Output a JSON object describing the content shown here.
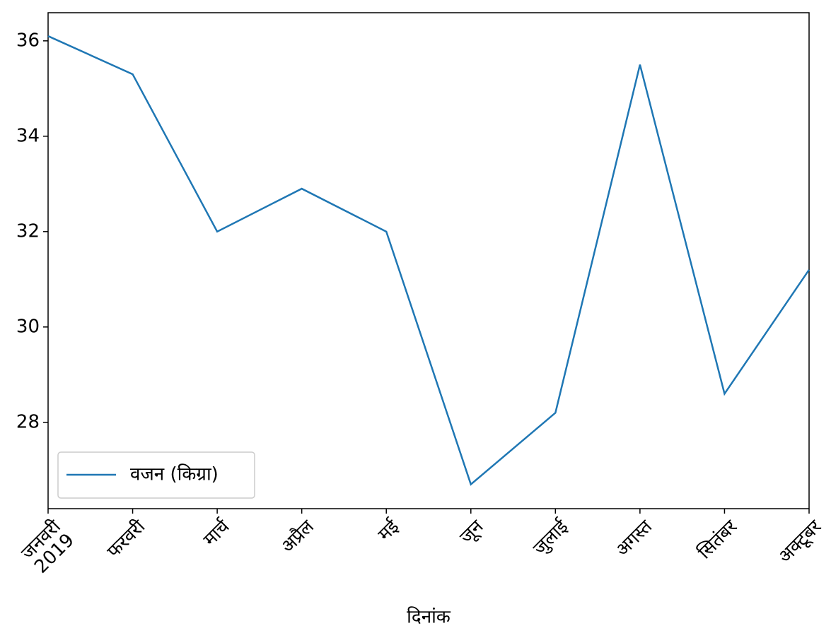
{
  "chart_data": {
    "type": "line",
    "x_label": "दिनांक",
    "categories": [
      "जनवरी\n2019",
      "फरवरी",
      "मार्च",
      "अप्रैल",
      "मई",
      "जून",
      "जुलाई",
      "अगस्त",
      "सितंबर",
      "अक्टूबर"
    ],
    "series": [
      {
        "name": "वजन (किग्रा)",
        "color": "#1f77b4",
        "values": [
          36.1,
          35.3,
          32.0,
          32.9,
          32.0,
          26.7,
          28.2,
          35.5,
          28.6,
          31.2
        ]
      }
    ],
    "ylim": [
      26.19,
      36.59
    ],
    "yticks": [
      28,
      30,
      32,
      34,
      36
    ],
    "grid": false,
    "legend": "lower left"
  }
}
